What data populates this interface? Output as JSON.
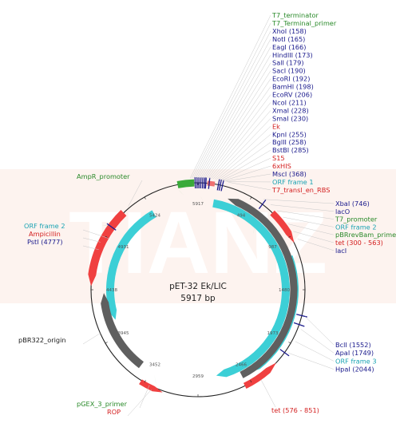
{
  "watermark": "TIANZ",
  "plasmid": {
    "name": "pET-32 Ek/LIC",
    "length": "5917 bp"
  },
  "ticks": [
    "5917",
    "494",
    "987",
    "1480",
    "1973",
    "2466",
    "2959",
    "3452",
    "3945",
    "4438",
    "4931",
    "5424"
  ],
  "right_top_labels": [
    {
      "text": "T7_terminator",
      "color": "#2a8a2a"
    },
    {
      "text": "T7_Terminal_primer",
      "color": "#2a8a2a"
    },
    {
      "text": "XhoI (158)",
      "color": "#1a1a8c"
    },
    {
      "text": "NotI (165)",
      "color": "#1a1a8c"
    },
    {
      "text": "EagI (166)",
      "color": "#1a1a8c"
    },
    {
      "text": "HindIII (173)",
      "color": "#1a1a8c"
    },
    {
      "text": "SalI (179)",
      "color": "#1a1a8c"
    },
    {
      "text": "SacI (190)",
      "color": "#1a1a8c"
    },
    {
      "text": "EcoRI (192)",
      "color": "#1a1a8c"
    },
    {
      "text": "BamHI (198)",
      "color": "#1a1a8c"
    },
    {
      "text": "EcoRV (206)",
      "color": "#1a1a8c"
    },
    {
      "text": "NcoI (211)",
      "color": "#1a1a8c"
    },
    {
      "text": "XmaI (228)",
      "color": "#1a1a8c"
    },
    {
      "text": "SmaI (230)",
      "color": "#1a1a8c"
    },
    {
      "text": "Ek",
      "color": "#d42020"
    },
    {
      "text": "KpnI (255)",
      "color": "#1a1a8c"
    },
    {
      "text": "BglII (258)",
      "color": "#1a1a8c"
    },
    {
      "text": "BstBI (285)",
      "color": "#1a1a8c"
    },
    {
      "text": "S15",
      "color": "#d42020"
    },
    {
      "text": "6xHIS",
      "color": "#d42020"
    },
    {
      "text": "MscI (368)",
      "color": "#1a1a8c"
    },
    {
      "text": "ORF frame 1",
      "color": "#1aa3b3"
    },
    {
      "text": "T7_transl_en_RBS",
      "color": "#d42020"
    }
  ],
  "right_mid_labels": [
    {
      "text": "XbaI (746)",
      "color": "#1a1a8c"
    },
    {
      "text": "lacO",
      "color": "#1a1a8c"
    },
    {
      "text": "T7_promoter",
      "color": "#2a8a2a"
    },
    {
      "text": "ORF frame 2",
      "color": "#1aa3b3"
    },
    {
      "text": "pBRrevBam_primer",
      "color": "#2a8a2a"
    },
    {
      "text": "tet (300 - 563)",
      "color": "#d42020"
    },
    {
      "text": "lacI",
      "color": "#1a1a8c"
    }
  ],
  "right_low_labels": [
    {
      "text": "BclI (1552)",
      "color": "#1a1a8c"
    },
    {
      "text": "ApaI (1749)",
      "color": "#1a1a8c"
    },
    {
      "text": "ORF frame 3",
      "color": "#1aa3b3"
    },
    {
      "text": "HpaI (2044)",
      "color": "#1a1a8c"
    }
  ],
  "tet_bottom_label": {
    "text": "tet (576 - 851)",
    "color": "#d42020"
  },
  "left_labels": [
    {
      "text": "AmpR_promoter",
      "color": "#2a8a2a"
    },
    {
      "text": "ORF frame 2",
      "color": "#1aa3b3"
    },
    {
      "text": "Ampicillin",
      "color": "#d42020"
    },
    {
      "text": "PstI (4777)",
      "color": "#1a1a8c"
    },
    {
      "text": "pBR322_origin",
      "color": "#1a1a1a"
    },
    {
      "text": "pGEX_3_primer",
      "color": "#2a8a2a"
    },
    {
      "text": "ROP",
      "color": "#d42020"
    }
  ],
  "colors": {
    "gene_red": "#f04040",
    "orf_cyan": "#3ccfd6",
    "gray_feature": "#5f5f5f",
    "green_feature": "#3aaa3a",
    "site_blue": "#1a1a8c",
    "backbone": "#222222"
  }
}
